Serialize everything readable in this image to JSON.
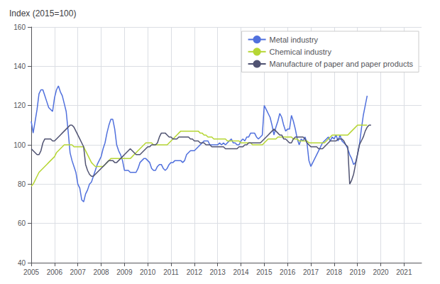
{
  "chart_data": {
    "type": "line",
    "title": "Index (2015=100)",
    "x": [
      2005,
      2005.083333,
      2005.166667,
      2005.25,
      2005.333333,
      2005.416667,
      2005.5,
      2005.583333,
      2005.666667,
      2005.75,
      2005.833333,
      2005.916667,
      2006,
      2006.083333,
      2006.166667,
      2006.25,
      2006.333333,
      2006.416667,
      2006.5,
      2006.583333,
      2006.666667,
      2006.75,
      2006.833333,
      2006.916667,
      2007,
      2007.083333,
      2007.166667,
      2007.25,
      2007.333333,
      2007.416667,
      2007.5,
      2007.583333,
      2007.666667,
      2007.75,
      2007.833333,
      2007.916667,
      2008,
      2008.083333,
      2008.166667,
      2008.25,
      2008.333333,
      2008.416667,
      2008.5,
      2008.583333,
      2008.666667,
      2008.75,
      2008.833333,
      2008.916667,
      2009,
      2009.083333,
      2009.166667,
      2009.25,
      2009.333333,
      2009.416667,
      2009.5,
      2009.583333,
      2009.666667,
      2009.75,
      2009.833333,
      2009.916667,
      2010,
      2010.083333,
      2010.166667,
      2010.25,
      2010.333333,
      2010.416667,
      2010.5,
      2010.583333,
      2010.666667,
      2010.75,
      2010.833333,
      2010.916667,
      2011,
      2011.083333,
      2011.166667,
      2011.25,
      2011.333333,
      2011.416667,
      2011.5,
      2011.583333,
      2011.666667,
      2011.75,
      2011.833333,
      2011.916667,
      2012,
      2012.083333,
      2012.166667,
      2012.25,
      2012.333333,
      2012.416667,
      2012.5,
      2012.583333,
      2012.666667,
      2012.75,
      2012.833333,
      2012.916667,
      2013,
      2013.083333,
      2013.166667,
      2013.25,
      2013.333333,
      2013.416667,
      2013.5,
      2013.583333,
      2013.666667,
      2013.75,
      2013.833333,
      2013.916667,
      2014,
      2014.083333,
      2014.166667,
      2014.25,
      2014.333333,
      2014.416667,
      2014.5,
      2014.583333,
      2014.666667,
      2014.75,
      2014.833333,
      2014.916667,
      2015,
      2015.083333,
      2015.166667,
      2015.25,
      2015.333333,
      2015.416667,
      2015.5,
      2015.583333,
      2015.666667,
      2015.75,
      2015.833333,
      2015.916667,
      2016,
      2016.083333,
      2016.166667,
      2016.25,
      2016.333333,
      2016.416667,
      2016.5,
      2016.583333,
      2016.666667,
      2016.75,
      2016.833333,
      2016.916667,
      2017,
      2017.083333,
      2017.166667,
      2017.25,
      2017.333333,
      2017.416667,
      2017.5,
      2017.583333,
      2017.666667,
      2017.75,
      2017.833333,
      2017.916667,
      2018,
      2018.083333,
      2018.166667,
      2018.25,
      2018.333333,
      2018.416667,
      2018.5,
      2018.583333,
      2018.666667,
      2018.75,
      2018.833333,
      2018.916667,
      2019,
      2019.083333,
      2019.166667,
      2019.25,
      2019.333333,
      2019.416667,
      2019.5,
      2019.583333
    ],
    "series": [
      {
        "name": "Metal industry",
        "values": [
          112,
          106,
          112,
          118,
          126,
          128,
          128,
          125,
          122,
          119,
          118,
          117,
          124,
          128,
          130,
          127,
          125,
          121,
          117,
          107,
          96,
          92,
          89,
          86,
          80,
          78,
          72,
          71,
          75,
          77,
          80,
          81,
          84,
          87,
          90,
          92,
          94,
          98,
          101,
          106,
          110,
          113,
          113,
          108,
          100,
          97,
          95,
          92,
          87,
          87,
          87,
          86,
          86,
          86,
          86,
          88,
          91,
          92,
          93,
          93,
          92,
          91,
          88,
          87,
          87,
          89,
          90,
          90,
          88,
          87,
          88,
          90,
          91,
          91,
          92,
          92,
          92,
          92,
          91,
          92,
          95,
          96,
          97,
          97,
          97,
          98,
          99,
          100,
          101,
          102,
          102,
          102,
          100,
          100,
          100,
          100,
          100,
          101,
          100,
          101,
          100,
          101,
          102,
          103,
          101,
          101,
          100,
          100,
          102,
          103,
          102,
          104,
          104,
          106,
          106,
          106,
          104,
          103,
          104,
          105,
          120,
          118,
          116,
          114,
          110,
          105,
          109,
          112,
          116,
          114,
          110,
          107,
          108,
          108,
          115,
          112,
          108,
          103,
          100,
          103,
          102,
          104,
          101,
          92,
          89,
          91,
          93,
          95,
          97,
          99,
          101,
          102,
          103,
          104,
          102,
          104,
          103,
          105,
          102,
          105,
          102,
          101,
          100,
          98,
          95,
          93,
          90,
          91,
          95,
          100,
          108,
          115,
          120,
          125,
          null,
          null
        ]
      },
      {
        "name": "Chemical industry",
        "values": [
          79,
          80,
          82,
          84,
          86,
          87,
          88,
          89,
          90,
          91,
          92,
          93,
          94,
          96,
          97,
          98,
          99,
          100,
          100,
          100,
          100,
          100,
          99,
          99,
          99,
          99,
          99,
          99,
          97,
          95,
          93,
          91,
          90,
          89,
          89,
          89,
          89,
          89,
          90,
          91,
          92,
          93,
          93,
          93,
          93,
          93,
          93,
          93,
          93,
          93,
          93,
          93,
          94,
          95,
          96,
          97,
          98,
          99,
          100,
          101,
          101,
          101,
          101,
          100,
          100,
          100,
          100,
          100,
          100,
          100,
          100,
          101,
          102,
          103,
          104,
          105,
          106,
          107,
          107,
          107,
          107,
          107,
          107,
          107,
          107,
          107,
          107,
          106,
          106,
          105,
          105,
          104,
          104,
          104,
          103,
          103,
          103,
          103,
          103,
          103,
          103,
          102,
          102,
          102,
          102,
          102,
          102,
          102,
          101,
          101,
          101,
          101,
          101,
          101,
          100,
          100,
          100,
          100,
          100,
          100,
          101,
          102,
          103,
          103,
          103,
          103,
          103,
          104,
          104,
          104,
          104,
          104,
          104,
          104,
          104,
          103,
          103,
          103,
          102,
          102,
          102,
          102,
          102,
          101,
          101,
          101,
          101,
          101,
          101,
          101,
          101,
          101,
          102,
          103,
          104,
          105,
          105,
          105,
          105,
          105,
          105,
          105,
          105,
          105,
          106,
          107,
          108,
          109,
          110,
          110,
          110,
          110,
          110,
          110,
          null,
          null
        ]
      },
      {
        "name": "Manufacture of paper and paper products",
        "values": [
          98,
          97,
          96,
          95,
          95,
          97,
          101,
          103,
          103,
          103,
          103,
          102,
          102,
          103,
          104,
          105,
          106,
          107,
          108,
          109,
          110,
          110,
          109,
          107,
          105,
          103,
          101,
          99,
          90,
          87,
          85,
          84,
          84,
          85,
          86,
          87,
          88,
          89,
          90,
          91,
          92,
          92,
          92,
          91,
          91,
          92,
          93,
          94,
          95,
          96,
          97,
          98,
          97,
          96,
          95,
          95,
          95,
          96,
          97,
          98,
          99,
          99,
          100,
          100,
          100,
          101,
          104,
          106,
          106,
          106,
          105,
          104,
          104,
          103,
          103,
          103,
          104,
          104,
          104,
          104,
          104,
          104,
          103,
          103,
          102,
          102,
          102,
          101,
          101,
          101,
          100,
          100,
          100,
          99,
          99,
          99,
          99,
          99,
          99,
          99,
          98,
          98,
          98,
          98,
          98,
          98,
          98,
          99,
          99,
          99,
          100,
          100,
          101,
          101,
          101,
          101,
          101,
          101,
          101,
          102,
          103,
          104,
          105,
          106,
          107,
          108,
          107,
          106,
          105,
          105,
          103,
          103,
          102,
          101,
          101,
          103,
          104,
          104,
          104,
          104,
          104,
          103,
          101,
          100,
          99,
          99,
          99,
          99,
          98,
          98,
          98,
          99,
          100,
          101,
          102,
          102,
          102,
          102,
          103,
          103,
          103,
          102,
          100,
          99,
          80,
          82,
          85,
          90,
          95,
          100,
          102,
          104,
          107,
          109,
          110,
          110
        ]
      }
    ],
    "xlim": [
      2005.0,
      2021.75
    ],
    "xticks": [
      2005,
      2006,
      2007,
      2008,
      2009,
      2010,
      2011,
      2012,
      2013,
      2014,
      2015,
      2016,
      2017,
      2018,
      2019,
      2020,
      2021
    ],
    "ylim": [
      40,
      160
    ],
    "yticks": [
      40,
      60,
      80,
      100,
      120,
      140,
      160
    ],
    "grid": true,
    "legend": "upper right"
  }
}
